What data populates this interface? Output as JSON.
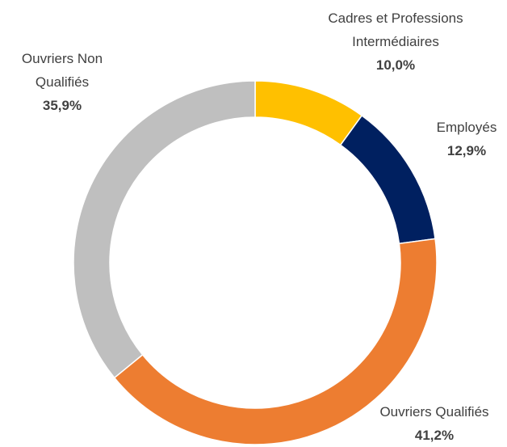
{
  "chart_data": {
    "type": "donut",
    "categories": [
      "Cadres et Professions Intermédiaires",
      "Employés",
      "Ouvriers Qualifiés",
      "Ouvriers Non Qualifiés"
    ],
    "values": [
      10.0,
      12.9,
      41.2,
      35.9
    ],
    "value_labels": [
      "10,0%",
      "12,9%",
      "41,2%",
      "35,9%"
    ],
    "colors": [
      "#ffc000",
      "#002060",
      "#ed7d31",
      "#bfbfbf"
    ]
  }
}
